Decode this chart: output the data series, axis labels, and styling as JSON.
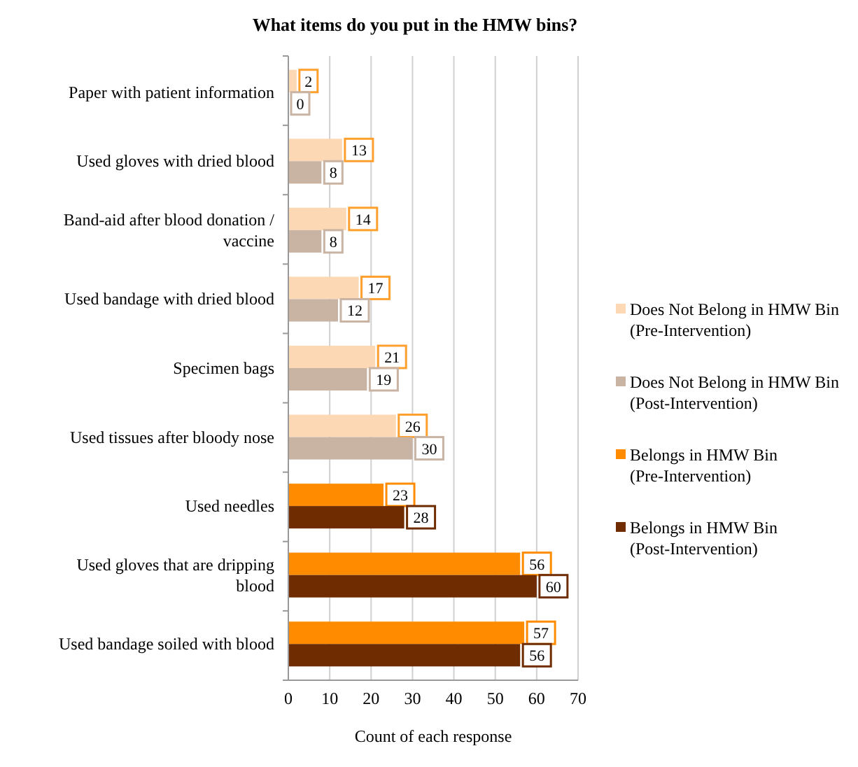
{
  "chart_data": {
    "type": "bar",
    "orientation": "horizontal",
    "title": "What items do you put in the HMW bins?",
    "xlabel": "Count of each response",
    "categories": [
      "Paper with patient information",
      "Used gloves with dried blood",
      "Band-aid after blood donation / vaccine",
      "Used bandage with dried blood",
      "Specimen bags",
      "Used tissues after bloody nose",
      "Used needles",
      "Used gloves that are dripping blood",
      "Used bandage soiled with blood"
    ],
    "series": [
      {
        "name": "Does Not Belong in HMW Bin (Pre-Intervention)",
        "color": "#fcd9b4",
        "values": [
          2,
          13,
          14,
          17,
          21,
          26,
          null,
          null,
          null
        ]
      },
      {
        "name": "Does Not Belong in HMW Bin (Post-Intervention)",
        "color": "#c9b3a3",
        "values": [
          0,
          8,
          8,
          12,
          19,
          30,
          null,
          null,
          null
        ]
      },
      {
        "name": "Belongs in HMW Bin (Pre-Intervention)",
        "color": "#ff8c00",
        "values": [
          null,
          null,
          null,
          null,
          null,
          null,
          23,
          56,
          57
        ]
      },
      {
        "name": "Belongs in HMW Bin (Post-Intervention)",
        "color": "#6e2c00",
        "values": [
          null,
          null,
          null,
          null,
          null,
          null,
          28,
          60,
          56
        ]
      }
    ],
    "xlim": [
      0,
      70
    ],
    "xticks": [
      0,
      10,
      20,
      30,
      40,
      50,
      60,
      70
    ],
    "grid": "x",
    "legend": "right",
    "data_labels": true
  }
}
